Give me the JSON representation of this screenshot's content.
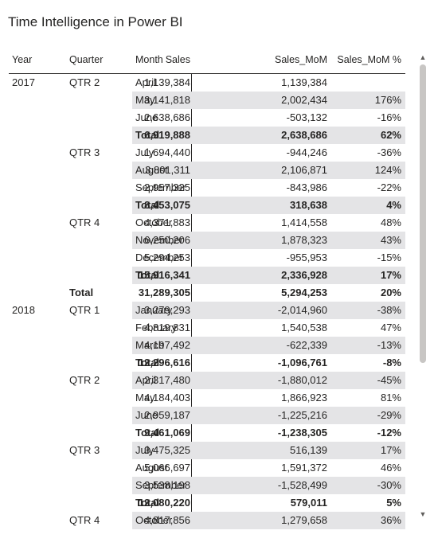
{
  "title": "Time Intelligence in Power BI",
  "headers": {
    "year": "Year",
    "quarter": "Quarter",
    "month": "Month",
    "sales": "Sales",
    "mom": "Sales_MoM",
    "pct": "Sales_MoM %"
  },
  "rows": [
    {
      "year": "2017",
      "quarter": "QTR 2",
      "month": "April",
      "sales": "1,139,384",
      "mom": "1,139,384",
      "pct": "",
      "shade": false,
      "bold": false
    },
    {
      "year": "",
      "quarter": "",
      "month": "May",
      "sales": "3,141,818",
      "mom": "2,002,434",
      "pct": "176%",
      "shade": true,
      "bold": false
    },
    {
      "year": "",
      "quarter": "",
      "month": "June",
      "sales": "2,638,686",
      "mom": "-503,132",
      "pct": "-16%",
      "shade": false,
      "bold": false
    },
    {
      "year": "",
      "quarter": "",
      "month": "Total",
      "sales": "6,919,888",
      "mom": "2,638,686",
      "pct": "62%",
      "shade": true,
      "bold": true
    },
    {
      "year": "",
      "quarter": "QTR 3",
      "month": "July",
      "sales": "1,694,440",
      "mom": "-944,246",
      "pct": "-36%",
      "shade": false,
      "bold": false
    },
    {
      "year": "",
      "quarter": "",
      "month": "August",
      "sales": "3,801,311",
      "mom": "2,106,871",
      "pct": "124%",
      "shade": true,
      "bold": false
    },
    {
      "year": "",
      "quarter": "",
      "month": "September",
      "sales": "2,957,325",
      "mom": "-843,986",
      "pct": "-22%",
      "shade": false,
      "bold": false
    },
    {
      "year": "",
      "quarter": "",
      "month": "Total",
      "sales": "8,453,075",
      "mom": "318,638",
      "pct": "4%",
      "shade": true,
      "bold": true
    },
    {
      "year": "",
      "quarter": "QTR 4",
      "month": "October",
      "sales": "4,371,883",
      "mom": "1,414,558",
      "pct": "48%",
      "shade": false,
      "bold": false
    },
    {
      "year": "",
      "quarter": "",
      "month": "November",
      "sales": "6,250,206",
      "mom": "1,878,323",
      "pct": "43%",
      "shade": true,
      "bold": false
    },
    {
      "year": "",
      "quarter": "",
      "month": "December",
      "sales": "5,294,253",
      "mom": "-955,953",
      "pct": "-15%",
      "shade": false,
      "bold": false
    },
    {
      "year": "",
      "quarter": "",
      "month": "Total",
      "sales": "15,916,341",
      "mom": "2,336,928",
      "pct": "17%",
      "shade": true,
      "bold": true
    },
    {
      "year": "",
      "quarter": "Total",
      "month": "",
      "sales": "31,289,305",
      "mom": "5,294,253",
      "pct": "20%",
      "shade": false,
      "bold": true
    },
    {
      "year": "2018",
      "quarter": "QTR 1",
      "month": "January",
      "sales": "3,279,293",
      "mom": "-2,014,960",
      "pct": "-38%",
      "shade": true,
      "bold": false
    },
    {
      "year": "",
      "quarter": "",
      "month": "February",
      "sales": "4,819,831",
      "mom": "1,540,538",
      "pct": "47%",
      "shade": false,
      "bold": false
    },
    {
      "year": "",
      "quarter": "",
      "month": "March",
      "sales": "4,197,492",
      "mom": "-622,339",
      "pct": "-13%",
      "shade": true,
      "bold": false
    },
    {
      "year": "",
      "quarter": "",
      "month": "Total",
      "sales": "12,296,616",
      "mom": "-1,096,761",
      "pct": "-8%",
      "shade": false,
      "bold": true
    },
    {
      "year": "",
      "quarter": "QTR 2",
      "month": "April",
      "sales": "2,317,480",
      "mom": "-1,880,012",
      "pct": "-45%",
      "shade": true,
      "bold": false
    },
    {
      "year": "",
      "quarter": "",
      "month": "May",
      "sales": "4,184,403",
      "mom": "1,866,923",
      "pct": "81%",
      "shade": false,
      "bold": false
    },
    {
      "year": "",
      "quarter": "",
      "month": "June",
      "sales": "2,959,187",
      "mom": "-1,225,216",
      "pct": "-29%",
      "shade": true,
      "bold": false
    },
    {
      "year": "",
      "quarter": "",
      "month": "Total",
      "sales": "9,461,069",
      "mom": "-1,238,305",
      "pct": "-12%",
      "shade": false,
      "bold": true
    },
    {
      "year": "",
      "quarter": "QTR 3",
      "month": "July",
      "sales": "3,475,325",
      "mom": "516,139",
      "pct": "17%",
      "shade": true,
      "bold": false
    },
    {
      "year": "",
      "quarter": "",
      "month": "August",
      "sales": "5,066,697",
      "mom": "1,591,372",
      "pct": "46%",
      "shade": false,
      "bold": false
    },
    {
      "year": "",
      "quarter": "",
      "month": "September",
      "sales": "3,538,198",
      "mom": "-1,528,499",
      "pct": "-30%",
      "shade": true,
      "bold": false
    },
    {
      "year": "",
      "quarter": "",
      "month": "Total",
      "sales": "12,080,220",
      "mom": "579,011",
      "pct": "5%",
      "shade": false,
      "bold": true
    },
    {
      "year": "",
      "quarter": "QTR 4",
      "month": "October",
      "sales": "4,817,856",
      "mom": "1,279,658",
      "pct": "36%",
      "shade": true,
      "bold": false
    }
  ],
  "scrollbar": {
    "up_icon": "chevron-up-icon",
    "down_icon": "chevron-down-icon"
  }
}
